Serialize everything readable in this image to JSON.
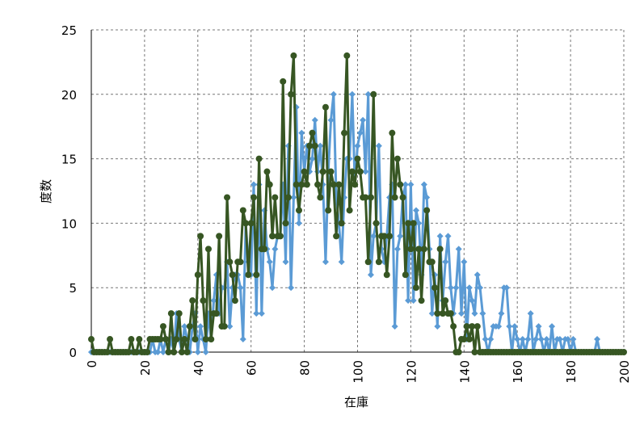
{
  "chart_data": {
    "type": "line",
    "xlabel": "在庫",
    "ylabel": "度数",
    "x": [
      0,
      1,
      2,
      3,
      4,
      5,
      6,
      7,
      8,
      9,
      10,
      11,
      12,
      13,
      14,
      15,
      16,
      17,
      18,
      19,
      20,
      21,
      22,
      23,
      24,
      25,
      26,
      27,
      28,
      29,
      30,
      31,
      32,
      33,
      34,
      35,
      36,
      37,
      38,
      39,
      40,
      41,
      42,
      43,
      44,
      45,
      46,
      47,
      48,
      49,
      50,
      51,
      52,
      53,
      54,
      55,
      56,
      57,
      58,
      59,
      60,
      61,
      62,
      63,
      64,
      65,
      66,
      67,
      68,
      69,
      70,
      71,
      72,
      73,
      74,
      75,
      76,
      77,
      78,
      79,
      80,
      81,
      82,
      83,
      84,
      85,
      86,
      87,
      88,
      89,
      90,
      91,
      92,
      93,
      94,
      95,
      96,
      97,
      98,
      99,
      100,
      101,
      102,
      103,
      104,
      105,
      106,
      107,
      108,
      109,
      110,
      111,
      112,
      113,
      114,
      115,
      116,
      117,
      118,
      119,
      120,
      121,
      122,
      123,
      124,
      125,
      126,
      127,
      128,
      129,
      130,
      131,
      132,
      133,
      134,
      135,
      136,
      137,
      138,
      139,
      140,
      141,
      142,
      143,
      144,
      145,
      146,
      147,
      148,
      149,
      150,
      151,
      152,
      153,
      154,
      155,
      156,
      157,
      158,
      159,
      160,
      161,
      162,
      163,
      164,
      165,
      166,
      167,
      168,
      169,
      170,
      171,
      172,
      173,
      174,
      175,
      176,
      177,
      178,
      179,
      180,
      181,
      182,
      183,
      184,
      185,
      186,
      187,
      188,
      189,
      190,
      191,
      192,
      193,
      194,
      195,
      196,
      197,
      198,
      199,
      200
    ],
    "series": [
      {
        "color": "#5b9bd5",
        "marker": "diamond",
        "values": [
          0,
          0,
          0,
          0,
          0,
          0,
          0,
          0,
          0,
          0,
          0,
          0,
          0,
          0,
          0,
          0,
          0,
          0,
          0,
          0,
          0,
          0,
          0,
          1,
          0,
          0,
          1,
          0,
          1,
          0,
          1,
          0,
          3,
          1,
          0,
          2,
          1,
          0,
          2,
          3,
          0,
          2,
          1,
          0,
          3,
          1,
          4,
          6,
          3,
          5,
          5,
          7,
          2,
          5,
          6,
          6,
          5,
          1,
          10,
          7,
          6,
          13,
          3,
          13,
          3,
          11,
          8,
          7,
          5,
          8,
          9,
          9,
          13,
          7,
          16,
          5,
          12,
          19,
          10,
          17,
          14,
          16,
          14,
          15,
          18,
          14,
          16,
          13,
          7,
          14,
          18,
          20,
          12,
          10,
          7,
          12,
          15,
          15,
          20,
          13,
          16,
          17,
          18,
          14,
          20,
          6,
          9,
          10,
          16,
          8,
          7,
          9,
          12,
          13,
          2,
          8,
          9,
          12,
          13,
          4,
          13,
          4,
          11,
          10,
          6,
          13,
          12,
          8,
          3,
          6,
          2,
          9,
          4,
          7,
          9,
          5,
          3,
          5,
          8,
          3,
          7,
          1,
          5,
          4,
          3,
          6,
          5,
          3,
          1,
          0,
          1,
          2,
          2,
          2,
          3,
          5,
          5,
          2,
          0,
          2,
          1,
          0,
          1,
          0,
          1,
          3,
          0,
          1,
          2,
          1,
          0,
          1,
          0,
          2,
          0,
          1,
          1,
          0,
          1,
          1,
          0,
          1,
          0,
          0,
          0,
          0,
          0,
          0,
          0,
          0,
          1,
          0,
          0,
          0,
          0,
          0,
          0,
          0,
          0,
          0,
          0
        ]
      },
      {
        "color": "#375623",
        "marker": "circle",
        "values": [
          1,
          0,
          0,
          0,
          0,
          0,
          0,
          1,
          0,
          0,
          0,
          0,
          0,
          0,
          0,
          1,
          0,
          0,
          1,
          0,
          0,
          0,
          1,
          1,
          1,
          1,
          1,
          2,
          1,
          0,
          3,
          0,
          1,
          3,
          0,
          1,
          0,
          2,
          4,
          1,
          6,
          9,
          4,
          1,
          8,
          1,
          3,
          3,
          9,
          2,
          2,
          12,
          7,
          6,
          4,
          7,
          7,
          11,
          10,
          6,
          10,
          12,
          6,
          15,
          8,
          8,
          14,
          13,
          9,
          12,
          9,
          9,
          21,
          10,
          12,
          20,
          23,
          13,
          11,
          13,
          14,
          13,
          16,
          17,
          16,
          13,
          12,
          14,
          19,
          11,
          14,
          13,
          9,
          13,
          10,
          17,
          23,
          11,
          14,
          13,
          15,
          14,
          12,
          12,
          7,
          12,
          20,
          10,
          7,
          9,
          9,
          6,
          9,
          17,
          12,
          15,
          13,
          12,
          6,
          10,
          8,
          10,
          5,
          8,
          4,
          8,
          11,
          7,
          7,
          5,
          3,
          8,
          3,
          4,
          3,
          3,
          2,
          0,
          0,
          1,
          1,
          2,
          1,
          2,
          0,
          2,
          0,
          0,
          0,
          0,
          0,
          0,
          0,
          0,
          0,
          0,
          0,
          0,
          0,
          0,
          0,
          0,
          0,
          0,
          0,
          0,
          0,
          0,
          0,
          0,
          0,
          0,
          0,
          0,
          0,
          0,
          0,
          0,
          0,
          0,
          0,
          0,
          0,
          0,
          0,
          0,
          0,
          0,
          0,
          0,
          0,
          0,
          0,
          0,
          0,
          0,
          0,
          0,
          0,
          0,
          0
        ]
      }
    ],
    "xlim": [
      0,
      200
    ],
    "xticks": [
      0,
      20,
      40,
      60,
      80,
      100,
      120,
      140,
      160,
      180,
      200
    ],
    "ylim": [
      0,
      25
    ],
    "yticks": [
      0,
      5,
      10,
      15,
      20,
      25
    ],
    "grid": true
  }
}
